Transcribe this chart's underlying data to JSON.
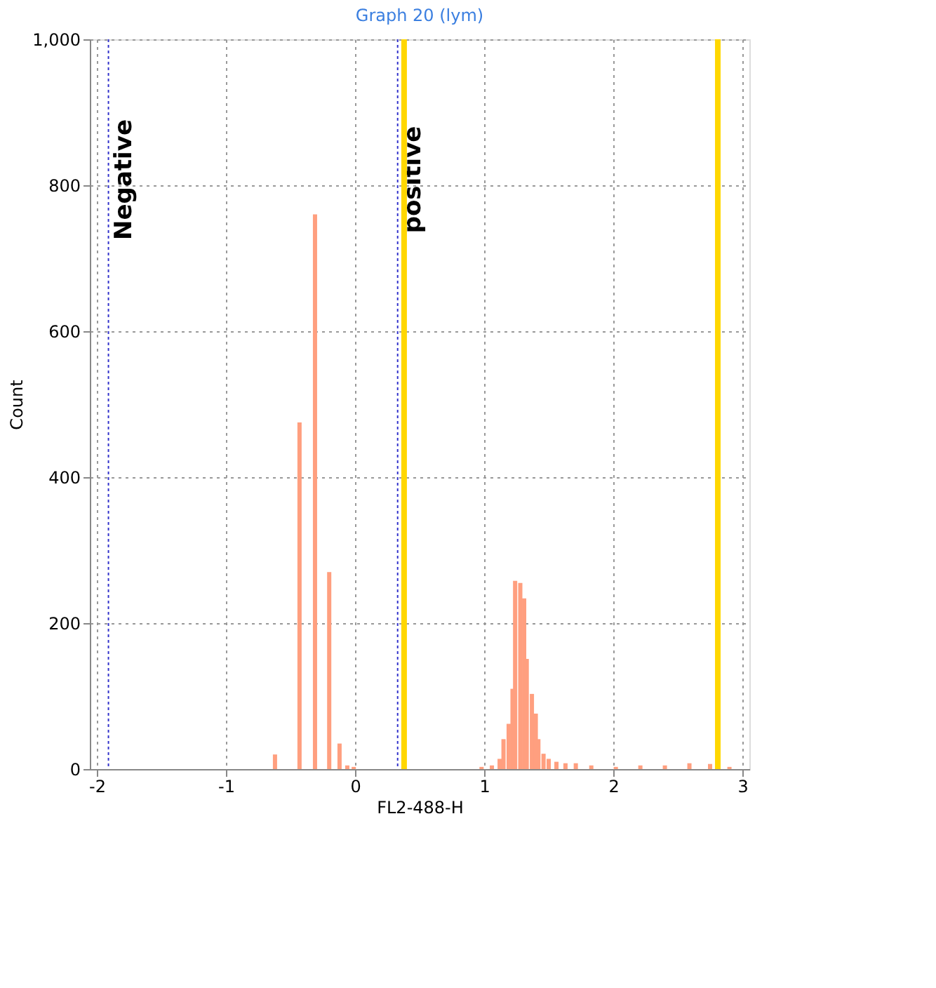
{
  "chart_data": {
    "type": "bar",
    "title": "Graph 20 (lym)",
    "xlabel": "FL2-488-H",
    "ylabel": "Count",
    "x": [
      -0.62,
      -0.43,
      -0.31,
      -0.2,
      -0.12,
      -0.06,
      -0.01,
      0.98,
      1.06,
      1.12,
      1.15,
      1.19,
      1.22,
      1.24,
      1.28,
      1.31,
      1.33,
      1.37,
      1.4,
      1.42,
      1.46,
      1.5,
      1.56,
      1.63,
      1.71,
      1.83,
      2.02,
      2.21,
      2.4,
      2.59,
      2.75,
      2.9
    ],
    "values": [
      20,
      475,
      760,
      270,
      35,
      5,
      3,
      3,
      5,
      14,
      41,
      62,
      110,
      258,
      255,
      234,
      151,
      103,
      76,
      41,
      21,
      14,
      10,
      8,
      8,
      5,
      3,
      5,
      5,
      8,
      7,
      3
    ],
    "color": "#ff9f7f",
    "xlim": [
      -2,
      3
    ],
    "xticks": [
      -2,
      -1,
      0,
      1,
      2,
      3
    ],
    "ylim": [
      0,
      1000
    ],
    "yticks": [
      0,
      200,
      400,
      600,
      800,
      {
        "value": 1000,
        "label": "1,000"
      }
    ],
    "grid": true,
    "ref_lines": [
      {
        "axis": "x",
        "value": -1.91,
        "label": "Negative",
        "color": "#3333cc",
        "line_style": "dotted"
      },
      {
        "axis": "x",
        "value": 0.33,
        "label": "positive",
        "color": "#3333cc",
        "line_style": "dotted"
      },
      {
        "axis": "x",
        "value": 0.38,
        "color": "#ffd700",
        "line_style": "solid"
      },
      {
        "axis": "x",
        "value": 2.81,
        "color": "#ffd700",
        "line_style": "solid"
      }
    ]
  }
}
